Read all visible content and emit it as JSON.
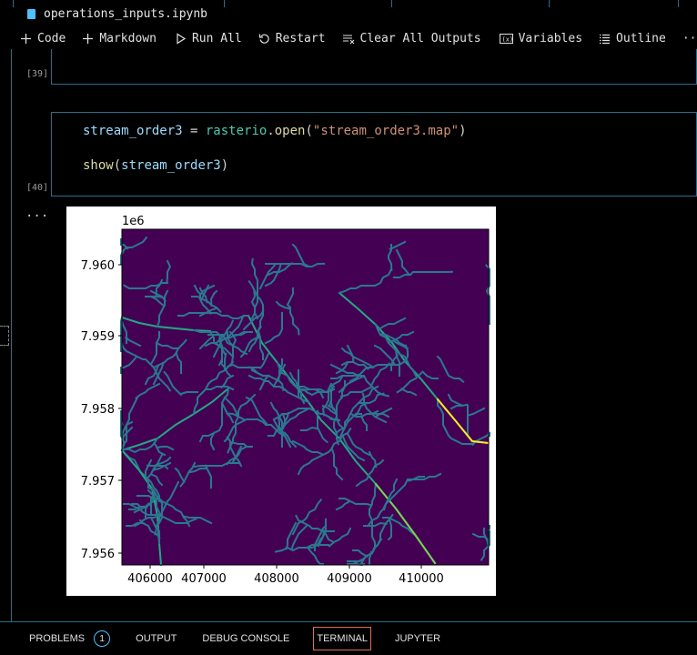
{
  "tab": {
    "filename": "operations_inputs.ipynb"
  },
  "toolbar": {
    "code": "Code",
    "markdown": "Markdown",
    "run_all": "Run All",
    "restart": "Restart",
    "clear_outputs": "Clear All Outputs",
    "variables": "Variables",
    "outline": "Outline",
    "more": "···"
  },
  "cells": [
    {
      "exec_count": "[39]"
    },
    {
      "exec_count": "[40]",
      "line1": {
        "var": "stream_order3",
        "op": " = ",
        "mod": "rasterio",
        "dot": ".",
        "fn": "open",
        "paren_open": "(",
        "str": "\"stream_order3.map\"",
        "paren_close": ")"
      },
      "line2": {
        "fn": "show",
        "paren_open": "(",
        "arg": "stream_order3",
        "paren_close": ")"
      }
    }
  ],
  "output": {
    "ellipsis": "..."
  },
  "chart_data": {
    "type": "heatmap",
    "title": "",
    "offset_label": "1e6",
    "xlabel": "",
    "ylabel": "",
    "x_ticks": [
      "406000",
      "407000",
      "408000",
      "409000",
      "410000"
    ],
    "y_ticks": [
      "7.960",
      "7.959",
      "7.958",
      "7.957",
      "7.956"
    ],
    "colormap": "viridis",
    "background": "#440154",
    "stream_colors": [
      "#2a788e",
      "#22a884",
      "#7ad151",
      "#fde725"
    ]
  },
  "panel": {
    "tabs": [
      "PROBLEMS",
      "OUTPUT",
      "DEBUG CONSOLE",
      "TERMINAL",
      "JUPYTER"
    ],
    "problems_count": "1"
  }
}
